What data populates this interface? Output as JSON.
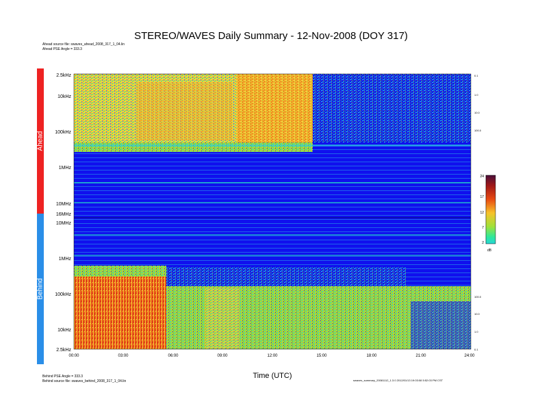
{
  "page": {
    "title": "STEREO/WAVES Daily Summary - 12-Nov-2008 (DOY 317)",
    "ahead_source": "Ahead source file: swaves_ahead_2008_317_1_04.lin",
    "ahead_angle": "Ahead PSE Angle = 333.3",
    "behind_angle": "Behind PSE Angle = 333.3",
    "behind_source": "Behind source file: swaves_behind_2008_317_1_04.lin",
    "footer_right": "swaves_summary_20081112_1.3.0 2012/01/13 19:03:08 5:52:03 PM CST",
    "ahead_label": "Ahead",
    "behind_label": "Behind",
    "colors": {
      "ahead_bar": "#ee2222",
      "behind_bar": "#2a8ee8",
      "background": "#1010ee"
    }
  },
  "chart_data": {
    "type": "heatmap",
    "title": "STEREO/WAVES Daily Summary - 12-Nov-2008 (DOY 317)",
    "xlabel": "Time (UTC)",
    "x_ticks": [
      "00:00",
      "03:00",
      "06:00",
      "09:00",
      "12:00",
      "15:00",
      "18:00",
      "21:00",
      "24:00"
    ],
    "ahead_y_ticks": [
      "2.5kHz",
      "10kHz",
      "100kHz",
      "1MHz",
      "10MHz",
      "16MHz"
    ],
    "behind_y_ticks": [
      "10MHz",
      "1MHz",
      "100kHz",
      "10kHz",
      "2.5kHz"
    ],
    "right_ticks_ahead": [
      "0.1",
      "1.0",
      "10.0",
      "100.0"
    ],
    "right_ticks_behind": [
      "100.0",
      "10.0",
      "1.0",
      "0.1"
    ],
    "colorbar": {
      "ticks": [
        "24",
        "17",
        "12",
        "7",
        "2"
      ],
      "unit": "dB",
      "range": [
        2,
        24
      ]
    },
    "regions_ahead": [
      {
        "t_start": 0,
        "t_end": 14.5,
        "freq": "2.5kHz-190kHz",
        "intensity": "high"
      },
      {
        "t_start": 14.5,
        "t_end": 24,
        "freq": "2.5kHz-190kHz",
        "intensity": "low"
      },
      {
        "t_start": 9.5,
        "t_end": 14.5,
        "freq": "2.5kHz-190kHz",
        "intensity": "very high"
      }
    ],
    "regions_behind": [
      {
        "t_start": 0,
        "t_end": 5.6,
        "freq": "2.5kHz-300kHz",
        "intensity": "very high"
      },
      {
        "t_start": 5.6,
        "t_end": 24,
        "freq": "2.5kHz-200kHz",
        "intensity": "moderate"
      }
    ]
  }
}
